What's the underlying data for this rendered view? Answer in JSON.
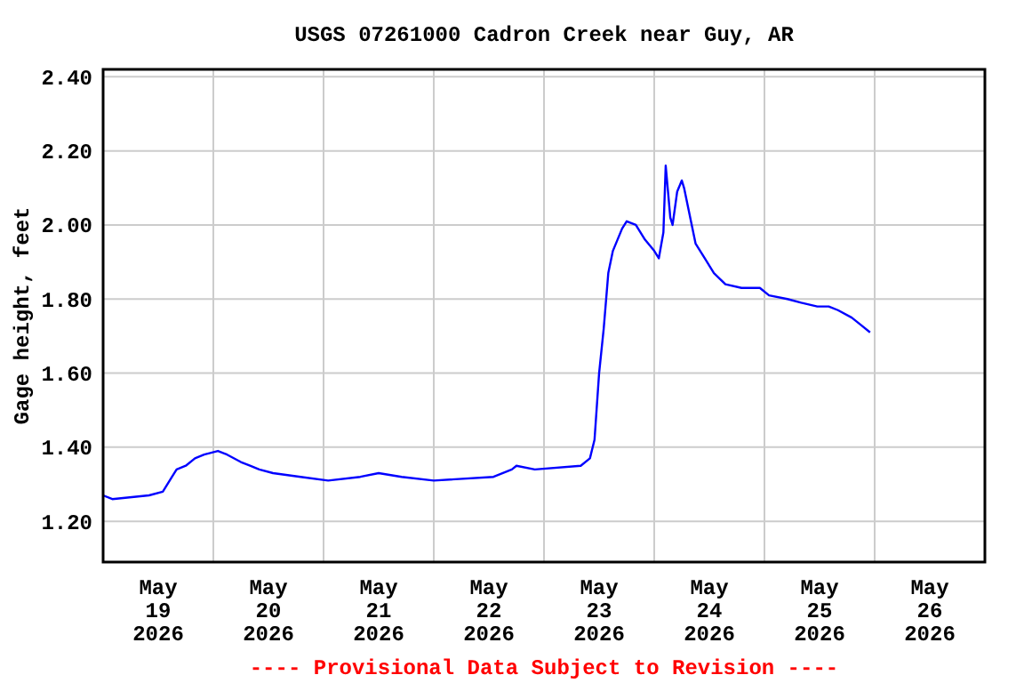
{
  "chart_data": {
    "type": "line",
    "title": "USGS 07261000 Cadron Creek near Guy, AR",
    "ylabel": "Gage height, feet",
    "annotations": [
      "---- Provisional Data Subject to Revision ----"
    ],
    "xlim": [
      "2026-05-19",
      "2026-05-27"
    ],
    "xticks": [
      {
        "value": "2026-05-19T12:00",
        "label": "May 19 2026"
      },
      {
        "value": "2026-05-20T12:00",
        "label": "May 20 2026"
      },
      {
        "value": "2026-05-21T12:00",
        "label": "May 21 2026"
      },
      {
        "value": "2026-05-22T12:00",
        "label": "May 22 2026"
      },
      {
        "value": "2026-05-23T12:00",
        "label": "May 23 2026"
      },
      {
        "value": "2026-05-24T12:00",
        "label": "May 24 2026"
      },
      {
        "value": "2026-05-25T12:00",
        "label": "May 25 2026"
      },
      {
        "value": "2026-05-26T12:00",
        "label": "May 26 2026"
      },
      {
        "value": "2026-05-20",
        "label": null
      },
      {
        "value": "2026-05-21",
        "label": null
      },
      {
        "value": "2026-05-22",
        "label": null
      },
      {
        "value": "2026-05-23",
        "label": null
      },
      {
        "value": "2026-05-24",
        "label": null
      },
      {
        "value": "2026-05-25",
        "label": null
      },
      {
        "value": "2026-05-26",
        "label": null
      }
    ],
    "ylim": [
      1.09,
      2.42
    ],
    "yticks": [
      {
        "value": 1.2,
        "label": "1.20"
      },
      {
        "value": 1.4,
        "label": "1.40"
      },
      {
        "value": 1.6,
        "label": "1.60"
      },
      {
        "value": 1.8,
        "label": "1.80"
      },
      {
        "value": 2.0,
        "label": "2.00"
      },
      {
        "value": 2.2,
        "label": "2.20"
      },
      {
        "value": 2.4,
        "label": "2.40"
      }
    ],
    "grid": true,
    "marker": "none",
    "line_style": "solid",
    "series": [
      {
        "color": "#0000ff",
        "x": [
          "2026-05-19T00:00",
          "2026-05-19T02:00",
          "2026-05-19T10:00",
          "2026-05-19T13:00",
          "2026-05-19T15:00",
          "2026-05-19T16:00",
          "2026-05-19T18:00",
          "2026-05-19T20:00",
          "2026-05-19T22:00",
          "2026-05-20T01:00",
          "2026-05-20T03:00",
          "2026-05-20T06:00",
          "2026-05-20T08:00",
          "2026-05-20T10:00",
          "2026-05-20T13:00",
          "2026-05-20T19:00",
          "2026-05-21T01:00",
          "2026-05-21T08:00",
          "2026-05-21T12:00",
          "2026-05-21T17:00",
          "2026-05-22T00:00",
          "2026-05-22T13:00",
          "2026-05-22T17:00",
          "2026-05-22T18:00",
          "2026-05-22T22:00",
          "2026-05-23T08:00",
          "2026-05-23T10:00",
          "2026-05-23T11:00",
          "2026-05-23T12:00",
          "2026-05-23T13:00",
          "2026-05-23T14:00",
          "2026-05-23T15:00",
          "2026-05-23T17:00",
          "2026-05-23T18:00",
          "2026-05-23T20:00",
          "2026-05-23T22:00",
          "2026-05-24T00:00",
          "2026-05-24T01:00",
          "2026-05-24T02:00",
          "2026-05-24T02:30",
          "2026-05-24T03:00",
          "2026-05-24T03:30",
          "2026-05-24T04:00",
          "2026-05-24T05:00",
          "2026-05-24T06:00",
          "2026-05-24T06:30",
          "2026-05-24T07:30",
          "2026-05-24T09:00",
          "2026-05-24T11:00",
          "2026-05-24T13:00",
          "2026-05-24T15:30",
          "2026-05-24T19:00",
          "2026-05-24T23:00",
          "2026-05-25T01:00",
          "2026-05-25T05:00",
          "2026-05-25T08:00",
          "2026-05-25T11:30",
          "2026-05-25T14:00",
          "2026-05-25T16:00",
          "2026-05-25T19:00",
          "2026-05-25T21:00",
          "2026-05-25T23:00"
        ],
        "values": [
          1.27,
          1.26,
          1.27,
          1.28,
          1.32,
          1.34,
          1.35,
          1.37,
          1.38,
          1.39,
          1.38,
          1.36,
          1.35,
          1.34,
          1.33,
          1.32,
          1.31,
          1.32,
          1.33,
          1.32,
          1.31,
          1.32,
          1.34,
          1.35,
          1.34,
          1.35,
          1.37,
          1.42,
          1.6,
          1.72,
          1.87,
          1.93,
          1.99,
          2.01,
          2.0,
          1.96,
          1.93,
          1.91,
          1.98,
          2.16,
          2.09,
          2.02,
          2.0,
          2.09,
          2.12,
          2.1,
          2.04,
          1.95,
          1.91,
          1.87,
          1.84,
          1.83,
          1.83,
          1.81,
          1.8,
          1.79,
          1.78,
          1.78,
          1.77,
          1.75,
          1.73,
          1.71
        ]
      }
    ]
  }
}
